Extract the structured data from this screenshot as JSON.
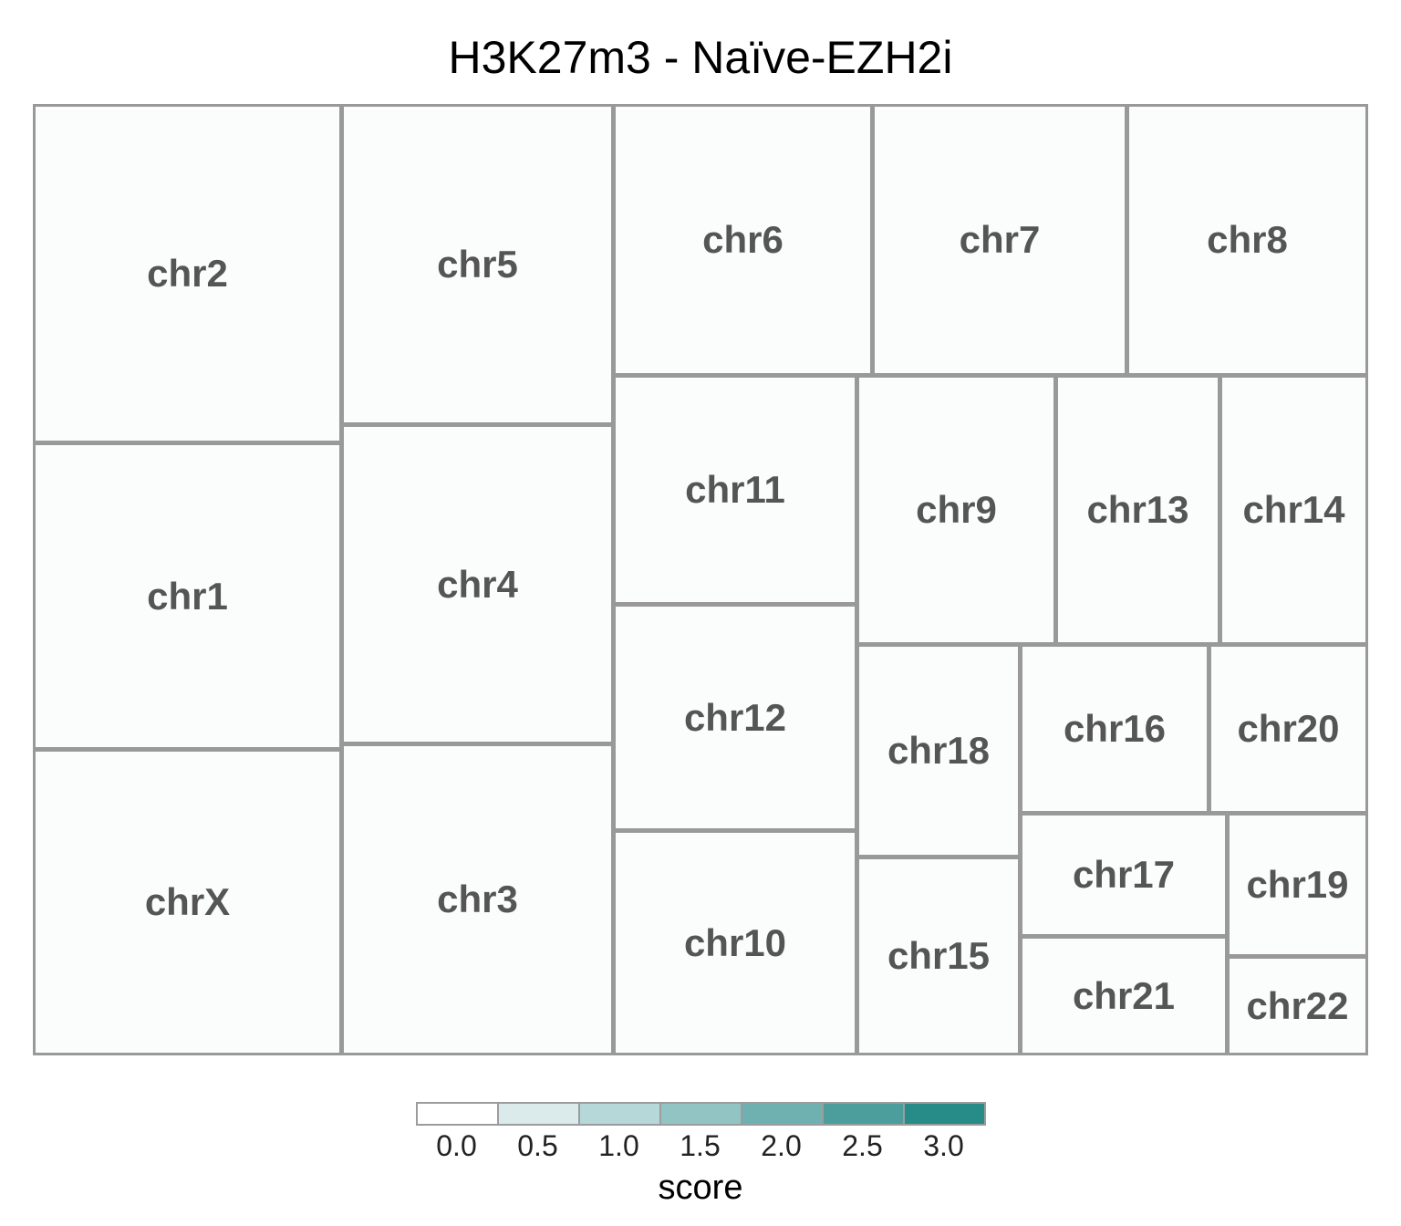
{
  "title": "H3K27m3 - Naïve-EZH2i",
  "chart_data": {
    "type": "treemap",
    "title": "H3K27m3 - Naïve-EZH2i",
    "tile_fill": "#fbfcfc",
    "border_color": "#999999",
    "label_color": "#555555",
    "tiles": [
      {
        "label": "chr2",
        "score": 0.0
      },
      {
        "label": "chr1",
        "score": 0.0
      },
      {
        "label": "chrX",
        "score": 0.0
      },
      {
        "label": "chr5",
        "score": 0.0
      },
      {
        "label": "chr4",
        "score": 0.0
      },
      {
        "label": "chr3",
        "score": 0.0
      },
      {
        "label": "chr6",
        "score": 0.0
      },
      {
        "label": "chr7",
        "score": 0.0
      },
      {
        "label": "chr8",
        "score": 0.0
      },
      {
        "label": "chr11",
        "score": 0.0
      },
      {
        "label": "chr12",
        "score": 0.0
      },
      {
        "label": "chr10",
        "score": 0.0
      },
      {
        "label": "chr9",
        "score": 0.0
      },
      {
        "label": "chr13",
        "score": 0.0
      },
      {
        "label": "chr14",
        "score": 0.0
      },
      {
        "label": "chr18",
        "score": 0.0
      },
      {
        "label": "chr15",
        "score": 0.0
      },
      {
        "label": "chr16",
        "score": 0.0
      },
      {
        "label": "chr20",
        "score": 0.0
      },
      {
        "label": "chr17",
        "score": 0.0
      },
      {
        "label": "chr21",
        "score": 0.0
      },
      {
        "label": "chr19",
        "score": 0.0
      },
      {
        "label": "chr22",
        "score": 0.0
      }
    ],
    "legend": {
      "title": "score",
      "placement": "bottom",
      "ticks": [
        "0.0",
        "0.5",
        "1.0",
        "1.5",
        "2.0",
        "2.5",
        "3.0"
      ],
      "colors": [
        "#ffffff",
        "#dbeaeb",
        "#b7d8d9",
        "#93c4c4",
        "#6fb1b0",
        "#4b9e9c",
        "#278b88"
      ]
    }
  }
}
